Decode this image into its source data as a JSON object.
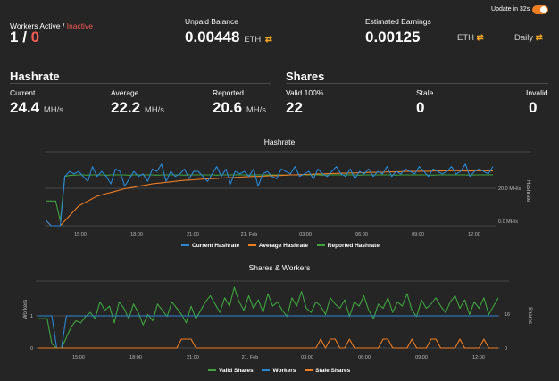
{
  "header": {
    "workers_label": "Workers Active",
    "workers_sep": " / ",
    "inactive_label": "Inactive",
    "workers_active": "1",
    "workers_slash": " / ",
    "workers_inactive": "0",
    "unpaid_label": "Unpaid Balance",
    "unpaid_value": "0.00448",
    "unpaid_unit": "ETH",
    "estimated_label": "Estimated Earnings",
    "estimated_value": "0.00125",
    "estimated_unit": "ETH",
    "period": "Daily",
    "update_label": "Update in 32s",
    "swap_icon": "swap-icon"
  },
  "hashrate": {
    "title": "Hashrate",
    "current_label": "Current",
    "current_value": "24.4",
    "average_label": "Average",
    "average_value": "22.2",
    "reported_label": "Reported",
    "reported_value": "20.6",
    "unit": "MH/s"
  },
  "shares": {
    "title": "Shares",
    "valid_label": "Valid 100%",
    "valid_value": "22",
    "stale_label": "Stale",
    "stale_value": "0",
    "invalid_label": "Invalid",
    "invalid_value": "0"
  },
  "colors": {
    "current": "#2a86d1",
    "average": "#ef7d22",
    "reported": "#3fa33f",
    "valid": "#3fa33f",
    "workers": "#2a86d1",
    "stale": "#ef7d22",
    "accent": "#ef7d22",
    "inactive": "#f25c54"
  },
  "chart_data": [
    {
      "type": "line",
      "title": "Hashrate",
      "ylabel": "Hashrate",
      "x_ticks": [
        "15:00",
        "18:00",
        "21:00",
        "21. Feb",
        "03:00",
        "06:00",
        "09:00",
        "12:00"
      ],
      "y_ticks": [
        "20.0 MH/s",
        "0.0 MH/s"
      ],
      "ylim": [
        0,
        30
      ],
      "series": [
        {
          "name": "Current Hashrate",
          "values": [
            2,
            0,
            0,
            0,
            20,
            22,
            21,
            22,
            20,
            18,
            24,
            20,
            22,
            20,
            17,
            23,
            22,
            16,
            19,
            22,
            20,
            21,
            18,
            23,
            22,
            25,
            18,
            22,
            20,
            21,
            23,
            19,
            22,
            22,
            20,
            18,
            21,
            24,
            20,
            23,
            17,
            22,
            21,
            22,
            20,
            23,
            16,
            21,
            22,
            20,
            19,
            23,
            22,
            21,
            24,
            20,
            21,
            22,
            19,
            23,
            21,
            20,
            22,
            24,
            21,
            20,
            23,
            19,
            22,
            21,
            23,
            20,
            22,
            21,
            24,
            20,
            22,
            21,
            23,
            22,
            21,
            24,
            22,
            20,
            23,
            22,
            21,
            22,
            24,
            21,
            22,
            25,
            20,
            22,
            23,
            22,
            21,
            24
          ]
        },
        {
          "name": "Average Hashrate",
          "values": [
            2,
            0,
            0,
            0,
            2,
            4,
            6,
            8,
            9,
            10,
            11,
            12,
            12.5,
            13,
            13.5,
            14,
            14.5,
            15,
            15.3,
            15.6,
            16,
            16.3,
            16.6,
            17,
            17.2,
            17.4,
            17.6,
            17.8,
            18,
            18.2,
            18.4,
            18.5,
            18.6,
            18.8,
            18.9,
            19,
            19.1,
            19.2,
            19.3,
            19.4,
            19.5,
            19.6,
            19.7,
            19.8,
            19.9,
            20,
            20,
            20.1,
            20.2,
            20.3,
            20.3,
            20.4,
            20.5,
            20.6,
            20.6,
            20.7,
            20.8,
            20.8,
            20.9,
            21,
            21,
            21.1,
            21.1,
            21.2,
            21.3,
            21.3,
            21.4,
            21.4,
            21.5,
            21.5,
            21.6,
            21.6,
            21.7,
            21.7,
            21.8,
            21.8,
            21.9,
            21.9,
            22,
            22,
            22,
            22.1,
            22.1,
            22.1,
            22.2,
            22.2,
            22.2,
            22.3,
            22.3,
            22.3,
            22.3,
            22.2,
            22.2,
            22.2,
            22.3,
            22.3,
            22.2,
            22.2
          ]
        },
        {
          "name": "Reported Hashrate",
          "values": [
            10,
            10,
            10,
            2,
            20,
            20.4,
            20.5,
            20.6,
            20.6,
            20.5,
            20.6,
            20.6,
            20.6,
            20.5,
            20.6,
            20.6,
            20.6,
            20.6,
            20.5,
            20.6,
            20.6,
            20.6,
            20.6,
            20.6,
            20.5,
            20.6,
            20.6,
            20.6,
            20.6,
            20.6,
            20.5,
            20.6,
            20.6,
            20.6,
            20.6,
            20.6,
            20.6,
            20.5,
            20.6,
            20.6,
            20.6,
            20.6,
            20.6,
            20.6,
            20.5,
            20.6,
            20.6,
            20.6,
            20.6,
            20.6,
            20.6,
            20.6,
            20.5,
            20.6,
            20.6,
            20.6,
            20.6,
            20.6,
            20.6,
            20.6,
            20.5,
            20.6,
            20.6,
            20.6,
            20.6,
            20.6,
            20.6,
            20.6,
            20.5,
            20.6,
            20.6,
            20.6,
            20.6,
            20.6,
            20.6,
            20.6,
            20.5,
            20.6,
            20.6,
            20.6,
            20.6,
            20.6,
            20.6,
            20.6,
            20.5,
            20.6,
            20.6,
            20.6,
            20.6,
            20.6,
            20.6,
            20.6,
            20.5,
            20.6,
            20.6,
            20.6,
            20.6,
            20.6
          ]
        }
      ]
    },
    {
      "type": "line",
      "title": "Shares & Workers",
      "ylabel_left": "Workers",
      "ylabel_right": "Shares",
      "x_ticks": [
        "15:00",
        "18:00",
        "21:00",
        "21. Feb",
        "03:00",
        "06:00",
        "09:00",
        "12:00"
      ],
      "y_left_ticks": [
        "1",
        "0"
      ],
      "y_right_ticks": [
        "16",
        "0"
      ],
      "ylim_shares": [
        0,
        32
      ],
      "series": [
        {
          "name": "Valid Shares",
          "values": [
            14,
            14,
            14,
            2,
            0,
            0,
            5,
            10,
            13,
            12,
            15,
            17,
            14,
            22,
            18,
            20,
            12,
            22,
            19,
            14,
            21,
            17,
            11,
            16,
            13,
            21,
            18,
            15,
            22,
            19,
            16,
            12,
            20,
            14,
            18,
            22,
            25,
            21,
            17,
            24,
            20,
            29,
            22,
            18,
            25,
            19,
            23,
            17,
            26,
            20,
            22,
            18,
            15,
            24,
            20,
            27,
            19,
            17,
            22,
            20,
            16,
            24,
            21,
            19,
            23,
            15,
            22,
            20,
            25,
            18,
            14,
            21,
            19,
            24,
            17,
            22,
            20,
            26,
            18,
            15,
            23,
            19,
            21,
            24,
            20,
            17,
            22,
            25,
            19,
            23,
            16,
            22,
            19,
            24,
            16,
            20,
            24
          ]
        },
        {
          "name": "Workers",
          "values": [
            1,
            1,
            1,
            1,
            0,
            0,
            1,
            1,
            1,
            1,
            1,
            1,
            1,
            1,
            1,
            1,
            1,
            1,
            1,
            1,
            1,
            1,
            1,
            1,
            1,
            1,
            1,
            1,
            1,
            1,
            1,
            1,
            1,
            1,
            1,
            1,
            1,
            1,
            1,
            1,
            1,
            1,
            1,
            1,
            1,
            1,
            1,
            1,
            1,
            1,
            1,
            1,
            1,
            1,
            1,
            1,
            1,
            1,
            1,
            1,
            1,
            1,
            1,
            1,
            1,
            1,
            1,
            1,
            1,
            1,
            1,
            1,
            1,
            1,
            1,
            1,
            1,
            1,
            1,
            1,
            1,
            1,
            1,
            1,
            1,
            1,
            1,
            1,
            1,
            1,
            1,
            1,
            1,
            1,
            1,
            1,
            1
          ]
        },
        {
          "name": "Stale Shares",
          "values": [
            0,
            0,
            0,
            0,
            0,
            0,
            0,
            0,
            0,
            0,
            0,
            0,
            0,
            0,
            0,
            0,
            0,
            0,
            0,
            0,
            0,
            0,
            0,
            0,
            0,
            0,
            0,
            0,
            0,
            0,
            1,
            1,
            1,
            0,
            0,
            0,
            0,
            0,
            0,
            0,
            0,
            0,
            0,
            0,
            0,
            0,
            0,
            0,
            0,
            0,
            0,
            0,
            0,
            0,
            0,
            0,
            0,
            0,
            0,
            1,
            0,
            1,
            1,
            0,
            0,
            1,
            0,
            0,
            0,
            0,
            0,
            0,
            1,
            1,
            0,
            0,
            0,
            0,
            1,
            0,
            0,
            0,
            1,
            1,
            0,
            0,
            0,
            0,
            1,
            0,
            0,
            0,
            0,
            1,
            0,
            0,
            0
          ]
        }
      ]
    }
  ]
}
